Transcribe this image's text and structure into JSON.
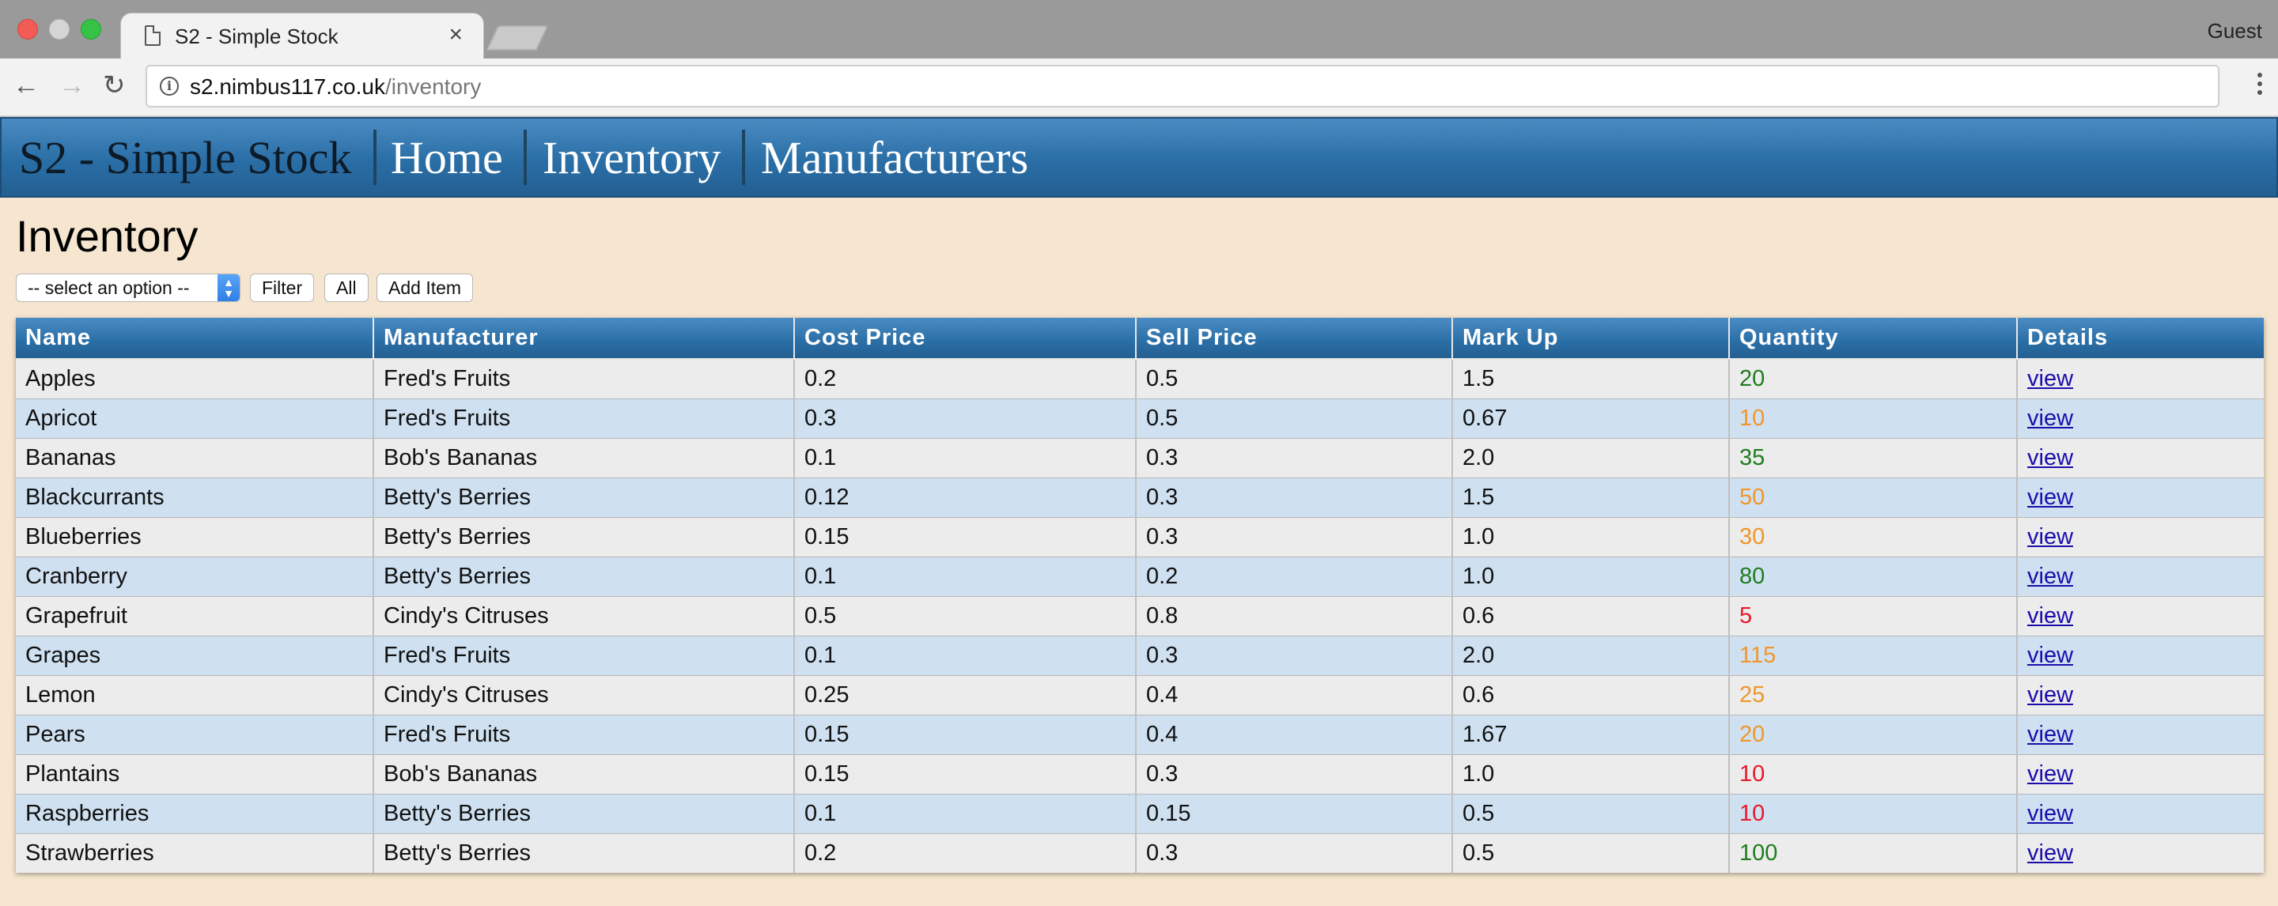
{
  "browser": {
    "tab_title": "S2 - Simple Stock",
    "tab_close": "×",
    "profile": "Guest",
    "url_host": "s2.nimbus117.co.uk",
    "url_path": "/inventory",
    "back": "←",
    "forward": "→",
    "reload": "↻"
  },
  "nav": {
    "brand": "S2 - Simple Stock",
    "links": [
      "Home",
      "Inventory",
      "Manufacturers"
    ]
  },
  "page": {
    "title": "Inventory",
    "select_value": "-- select an option --",
    "filter_label": "Filter",
    "all_label": "All",
    "add_label": "Add Item"
  },
  "colors": {
    "qty_high": "#1e7d1e",
    "qty_mid": "#f0962a",
    "qty_low": "#e8182a",
    "link": "#1a0dab"
  },
  "table": {
    "headers": [
      "Name",
      "Manufacturer",
      "Cost Price",
      "Sell Price",
      "Mark Up",
      "Quantity",
      "Details"
    ],
    "rows": [
      {
        "name": "Apples",
        "manufacturer": "Fred's Fruits",
        "cost": "0.2",
        "sell": "0.5",
        "markup": "1.5",
        "qty": "20",
        "qty_status": "high",
        "details": "view"
      },
      {
        "name": "Apricot",
        "manufacturer": "Fred's Fruits",
        "cost": "0.3",
        "sell": "0.5",
        "markup": "0.67",
        "qty": "10",
        "qty_status": "mid",
        "details": "view"
      },
      {
        "name": "Bananas",
        "manufacturer": "Bob's Bananas",
        "cost": "0.1",
        "sell": "0.3",
        "markup": "2.0",
        "qty": "35",
        "qty_status": "high",
        "details": "view"
      },
      {
        "name": "Blackcurrants",
        "manufacturer": "Betty's Berries",
        "cost": "0.12",
        "sell": "0.3",
        "markup": "1.5",
        "qty": "50",
        "qty_status": "mid",
        "details": "view"
      },
      {
        "name": "Blueberries",
        "manufacturer": "Betty's Berries",
        "cost": "0.15",
        "sell": "0.3",
        "markup": "1.0",
        "qty": "30",
        "qty_status": "mid",
        "details": "view"
      },
      {
        "name": "Cranberry",
        "manufacturer": "Betty's Berries",
        "cost": "0.1",
        "sell": "0.2",
        "markup": "1.0",
        "qty": "80",
        "qty_status": "high",
        "details": "view"
      },
      {
        "name": "Grapefruit",
        "manufacturer": "Cindy's Citruses",
        "cost": "0.5",
        "sell": "0.8",
        "markup": "0.6",
        "qty": "5",
        "qty_status": "low",
        "details": "view"
      },
      {
        "name": "Grapes",
        "manufacturer": "Fred's Fruits",
        "cost": "0.1",
        "sell": "0.3",
        "markup": "2.0",
        "qty": "115",
        "qty_status": "mid",
        "details": "view"
      },
      {
        "name": "Lemon",
        "manufacturer": "Cindy's Citruses",
        "cost": "0.25",
        "sell": "0.4",
        "markup": "0.6",
        "qty": "25",
        "qty_status": "mid",
        "details": "view"
      },
      {
        "name": "Pears",
        "manufacturer": "Fred's Fruits",
        "cost": "0.15",
        "sell": "0.4",
        "markup": "1.67",
        "qty": "20",
        "qty_status": "mid",
        "details": "view"
      },
      {
        "name": "Plantains",
        "manufacturer": "Bob's Bananas",
        "cost": "0.15",
        "sell": "0.3",
        "markup": "1.0",
        "qty": "10",
        "qty_status": "low",
        "details": "view"
      },
      {
        "name": "Raspberries",
        "manufacturer": "Betty's Berries",
        "cost": "0.1",
        "sell": "0.15",
        "markup": "0.5",
        "qty": "10",
        "qty_status": "low",
        "details": "view"
      },
      {
        "name": "Strawberries",
        "manufacturer": "Betty's Berries",
        "cost": "0.2",
        "sell": "0.3",
        "markup": "0.5",
        "qty": "100",
        "qty_status": "high",
        "details": "view"
      }
    ]
  }
}
